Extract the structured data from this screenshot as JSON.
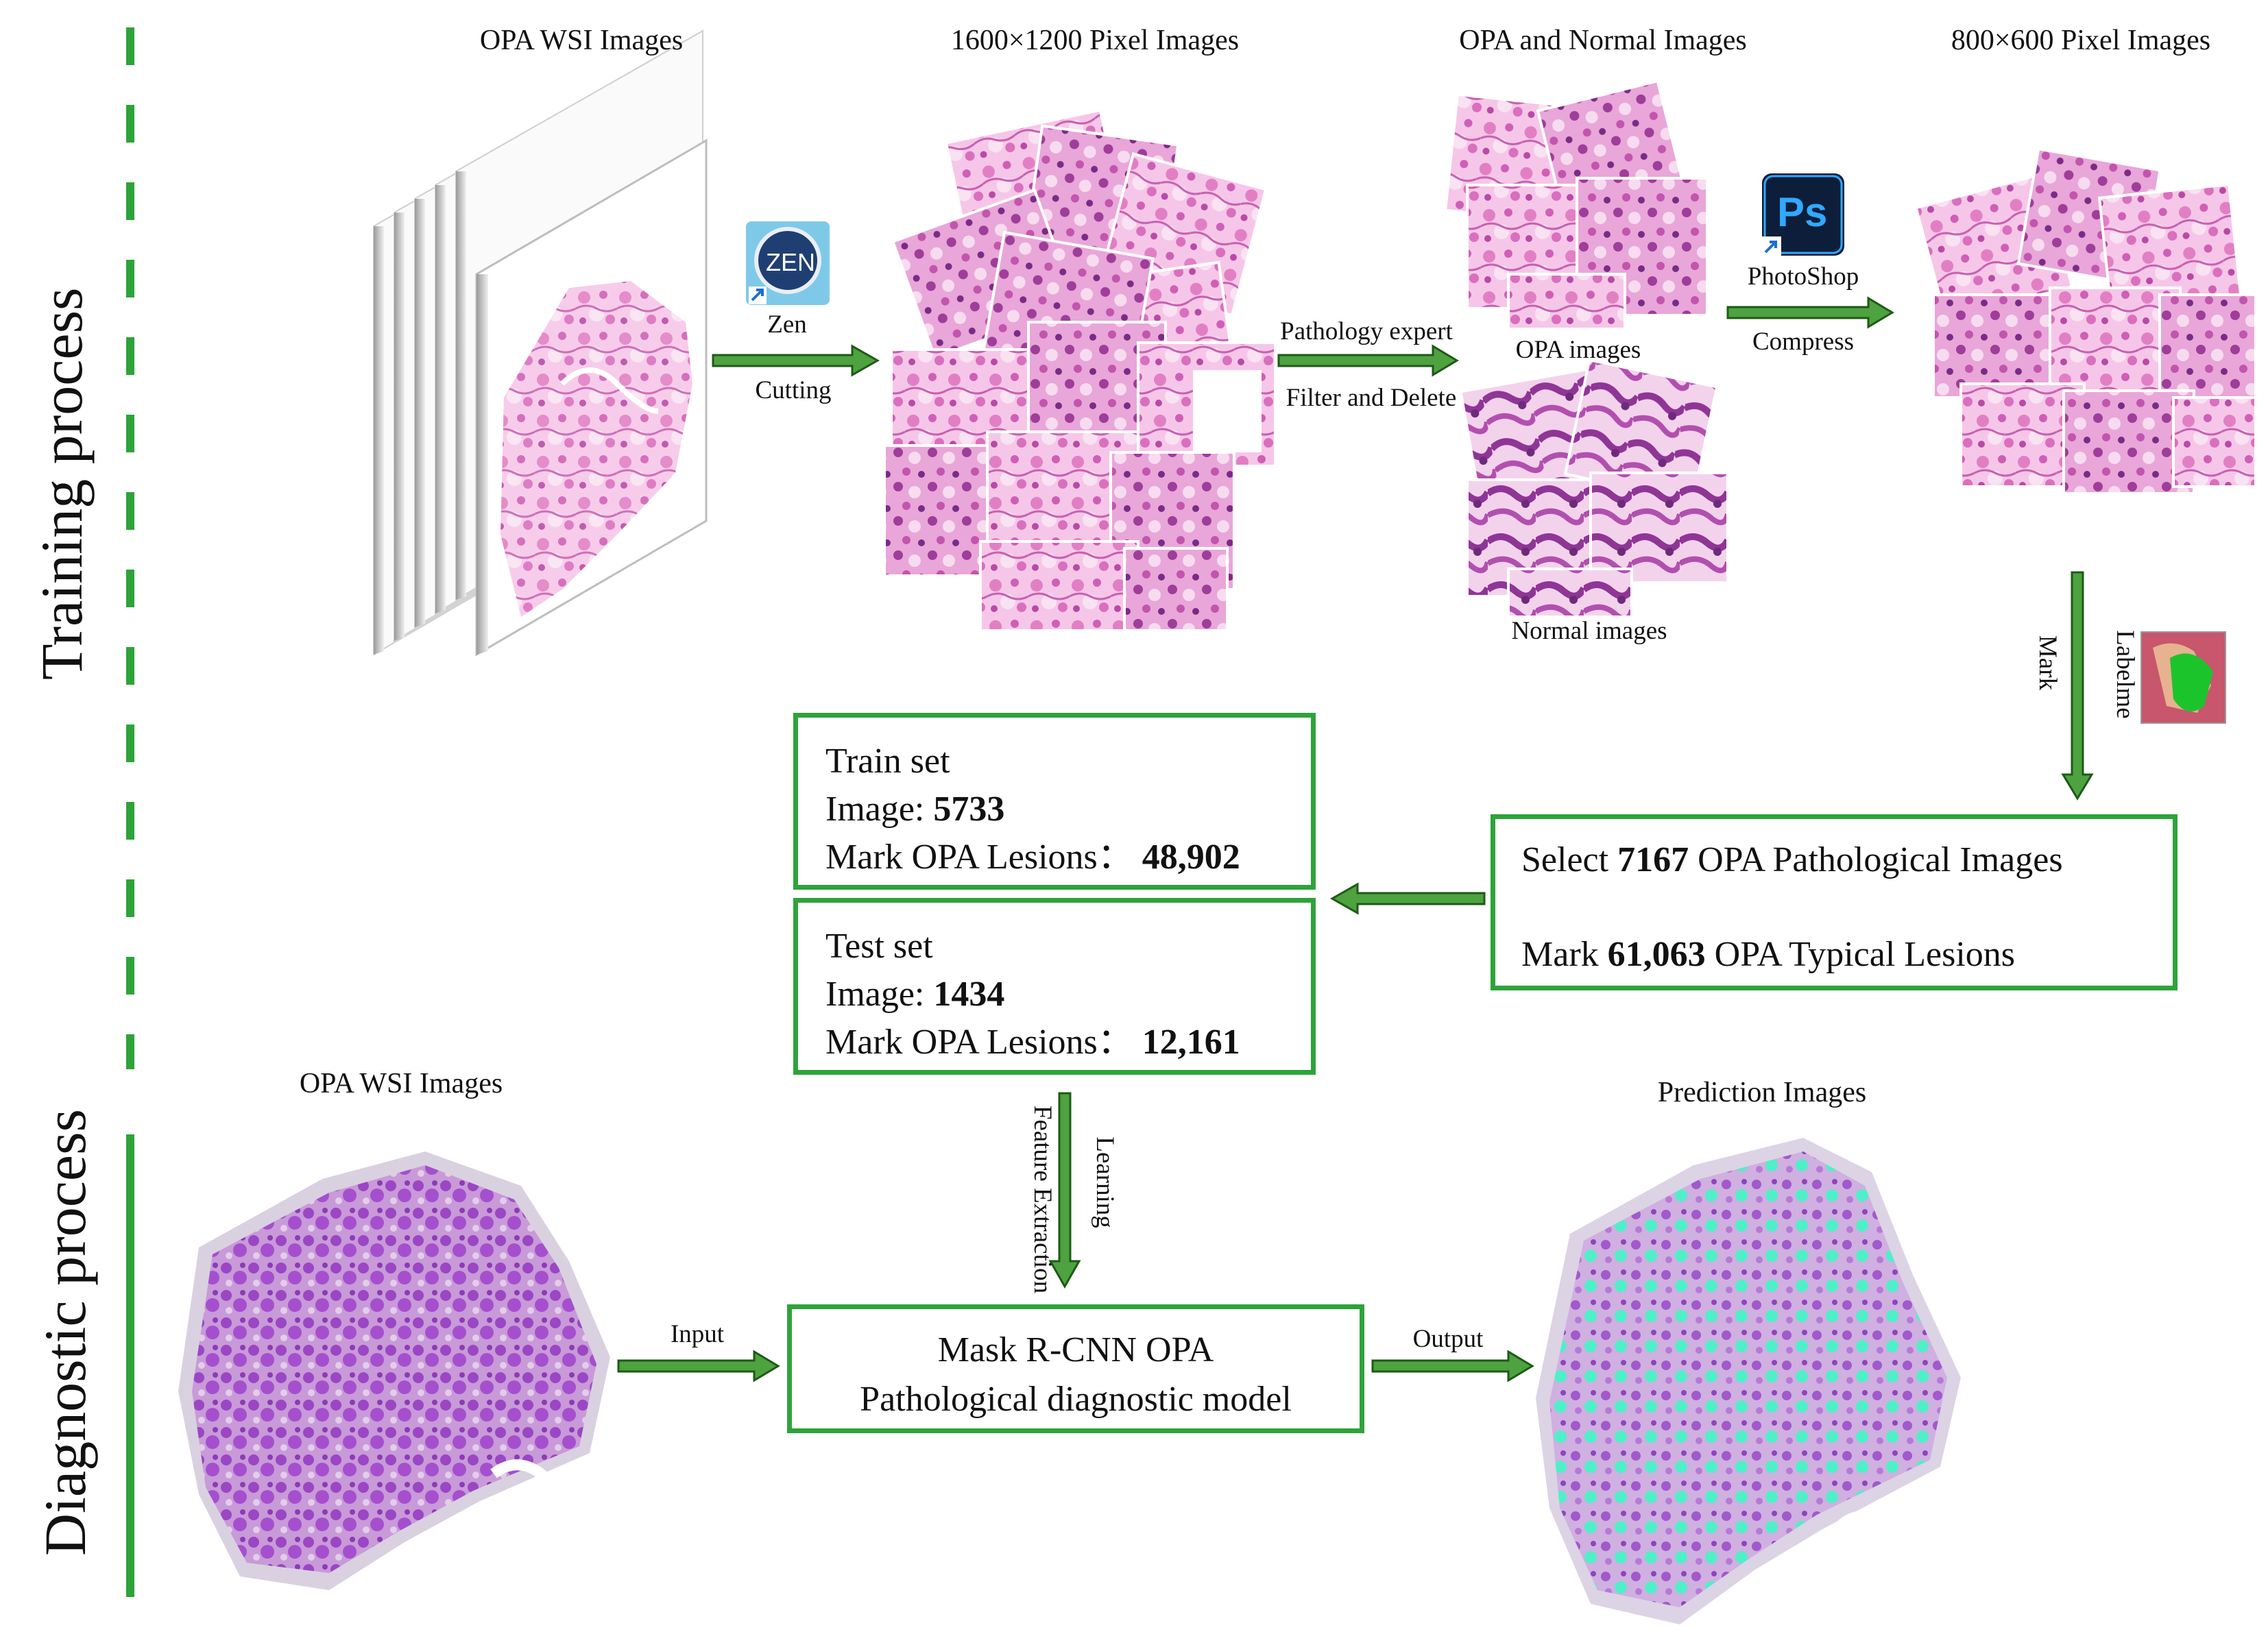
{
  "sections": {
    "training": "Training process",
    "diagnostic": "Diagnostic process"
  },
  "stage_titles": {
    "wsi": "OPA WSI Images",
    "px1600": "1600×1200 Pixel Images",
    "opa_normal": "OPA and Normal Images",
    "px800": "800×600 Pixel Images"
  },
  "tools": {
    "zen_icon_text": "ZEN",
    "zen_name": "Zen",
    "ps_icon_text": "Ps",
    "ps_name": "PhotoShop",
    "labelme_name": "Labelme"
  },
  "arrows": {
    "cutting": "Cutting",
    "pathology_expert": "Pathology expert",
    "filter_delete": "Filter and Delete",
    "compress": "Compress",
    "mark": "Mark",
    "learning": "Learning",
    "feature_extraction": "Feature Extraction",
    "input": "Input",
    "output": "Output"
  },
  "image_labels": {
    "opa_images": "OPA images",
    "normal_images": "Normal images",
    "wsi_diag": "OPA WSI Images",
    "prediction": "Prediction Images"
  },
  "select_box": {
    "line1_pre": "Select ",
    "line1_num": "7167",
    "line1_post": " OPA Pathological Images",
    "line2_pre": "Mark ",
    "line2_num": "61,063",
    "line2_post": " OPA Typical Lesions"
  },
  "train_box": {
    "title": "Train set",
    "image_pre": "Image: ",
    "image_num": "5733",
    "lesions_pre": "Mark OPA Lesions：",
    "lesions_num": "48,902"
  },
  "test_box": {
    "title": "Test set",
    "image_pre": "Image: ",
    "image_num": "1434",
    "lesions_pre": "Mark OPA Lesions：",
    "lesions_num": "12,161"
  },
  "model_box": {
    "line1": "Mask R-CNN OPA",
    "line2": "Pathological diagnostic model"
  },
  "colors": {
    "green": "#2ea33a",
    "arrow_green": "#2d7a24",
    "pink": "#e27fc4",
    "purple": "#a34fc8",
    "cyan": "#4ef0c8"
  }
}
